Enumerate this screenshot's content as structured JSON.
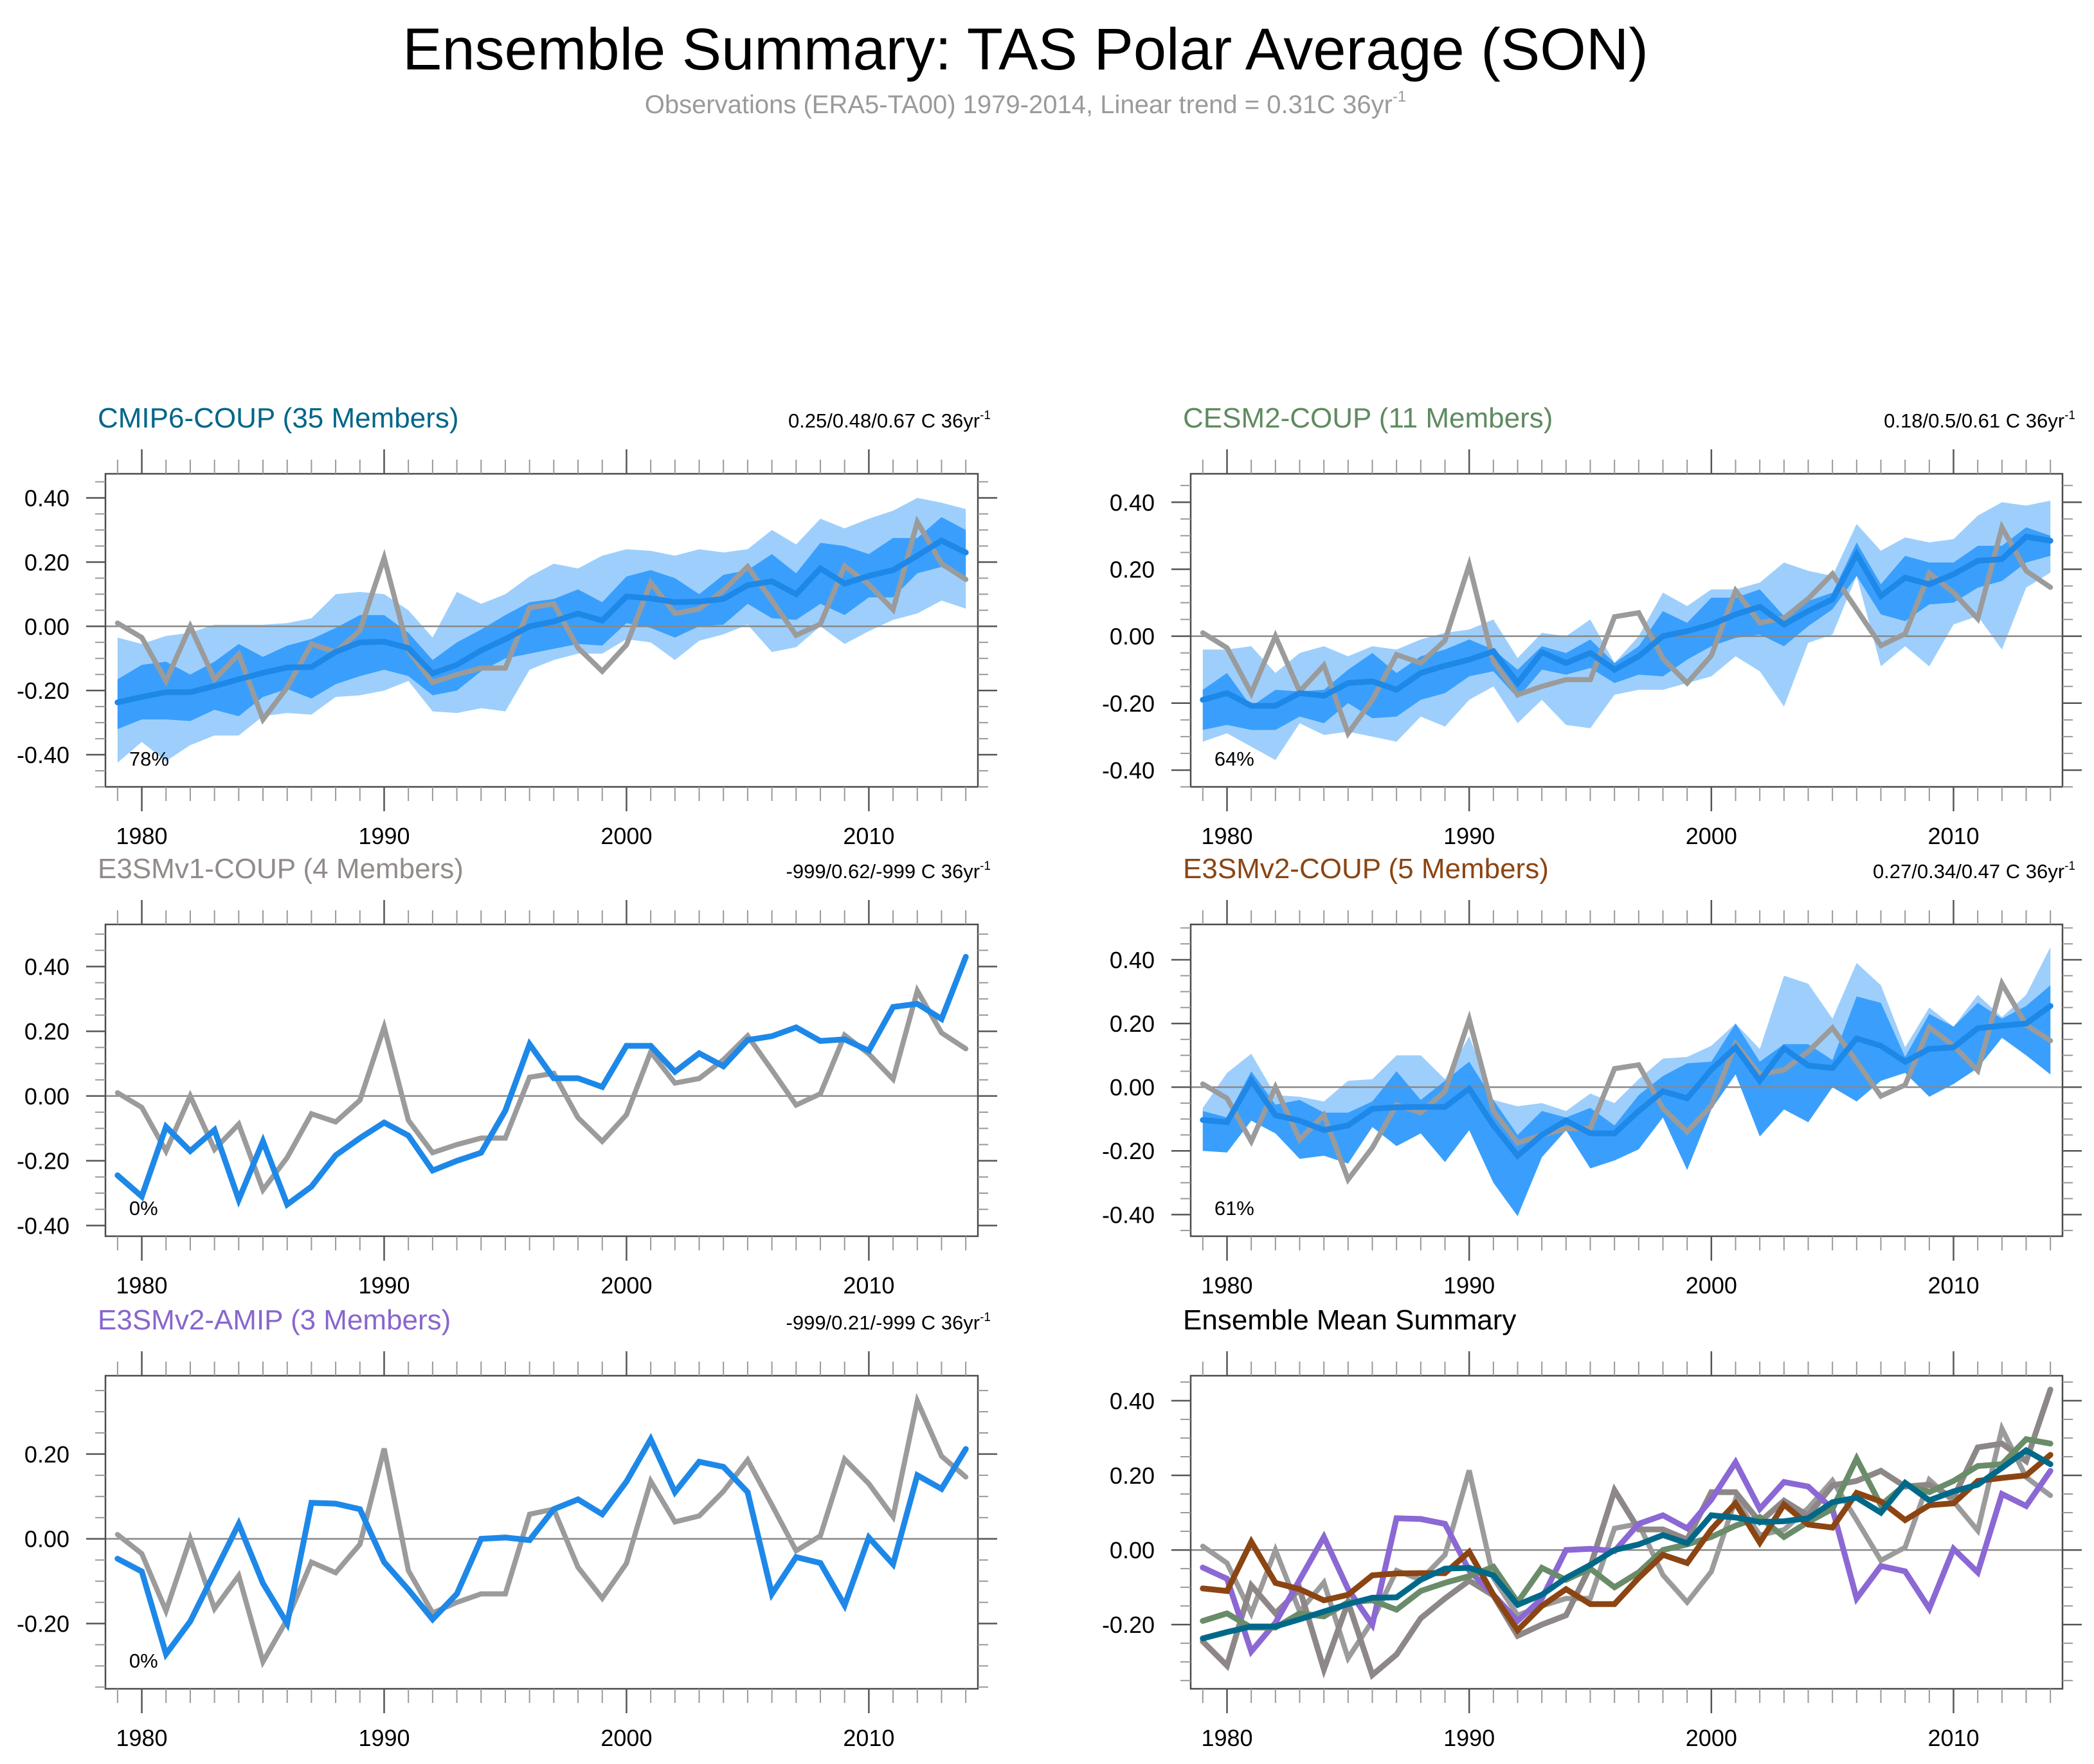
{
  "figure": {
    "title": "Ensemble Summary: TAS Polar Average (SON)",
    "subtitle": "Observations (ERA5-TA00) 1979-2014, Linear trend = 0.31C 36yr",
    "subtitle_sup": "-1"
  },
  "colors": {
    "obs": "#9b9b9b",
    "ens_mean": "#1e88e8",
    "band_inner": "#3a9ffc",
    "band_outer": "#9ecffc",
    "zero_line": "#888888"
  },
  "chart_data": [
    {
      "id": "cmip6",
      "type": "area",
      "title": "CMIP6-COUP (35 Members)",
      "title_color": "#006688",
      "trend_label": "0.25/0.48/0.67 C 36yr",
      "trend_sup": "-1",
      "percent_label": "78%",
      "xlabel": "",
      "ylabel": "",
      "x_start": 1979,
      "x_end": 2014,
      "xticks": [
        1980,
        1990,
        2000,
        2010
      ],
      "yticks": [
        "0.40",
        "0.20",
        "0.00",
        "-0.20",
        "-0.40"
      ],
      "ytick_values": [
        0.4,
        0.2,
        0.0,
        -0.2,
        -0.4
      ],
      "ylim": [
        -0.5,
        0.475
      ],
      "grid": false,
      "ens_mean": [
        -0.237,
        -0.22,
        -0.205,
        -0.205,
        -0.186,
        -0.165,
        -0.145,
        -0.128,
        -0.127,
        -0.08,
        -0.05,
        -0.048,
        -0.068,
        -0.147,
        -0.12,
        -0.075,
        -0.04,
        0.0,
        0.015,
        0.04,
        0.018,
        0.093,
        0.087,
        0.075,
        0.077,
        0.085,
        0.128,
        0.14,
        0.1,
        0.18,
        0.133,
        0.157,
        0.175,
        0.22,
        0.267,
        0.23
      ],
      "inner_upper": [
        -0.165,
        -0.12,
        -0.11,
        -0.15,
        -0.11,
        -0.055,
        -0.095,
        -0.06,
        -0.04,
        -0.005,
        0.035,
        0.035,
        -0.02,
        -0.105,
        -0.05,
        -0.01,
        0.035,
        0.075,
        0.085,
        0.115,
        0.075,
        0.155,
        0.175,
        0.15,
        0.1,
        0.16,
        0.175,
        0.225,
        0.165,
        0.26,
        0.25,
        0.225,
        0.275,
        0.275,
        0.34,
        0.3
      ],
      "inner_lower": [
        -0.32,
        -0.29,
        -0.29,
        -0.295,
        -0.26,
        -0.28,
        -0.22,
        -0.195,
        -0.225,
        -0.18,
        -0.155,
        -0.135,
        -0.155,
        -0.215,
        -0.2,
        -0.14,
        -0.1,
        -0.085,
        -0.07,
        -0.055,
        -0.06,
        0.01,
        -0.005,
        -0.035,
        0.0,
        0.005,
        0.07,
        0.025,
        0.02,
        0.07,
        0.035,
        0.09,
        0.09,
        0.165,
        0.185,
        0.14
      ],
      "outer_upper": [
        -0.035,
        -0.055,
        -0.03,
        -0.02,
        0.005,
        0.005,
        0.005,
        0.01,
        0.025,
        0.1,
        0.107,
        0.1,
        0.05,
        -0.035,
        0.107,
        0.07,
        0.1,
        0.155,
        0.195,
        0.18,
        0.22,
        0.24,
        0.235,
        0.22,
        0.24,
        0.23,
        0.24,
        0.3,
        0.255,
        0.335,
        0.305,
        0.335,
        0.36,
        0.4,
        0.385,
        0.365
      ],
      "outer_lower": [
        -0.425,
        -0.36,
        -0.42,
        -0.37,
        -0.34,
        -0.34,
        -0.28,
        -0.27,
        -0.275,
        -0.22,
        -0.215,
        -0.2,
        -0.17,
        -0.265,
        -0.27,
        -0.255,
        -0.265,
        -0.135,
        -0.105,
        -0.085,
        -0.085,
        -0.04,
        -0.05,
        -0.105,
        -0.045,
        -0.025,
        0.005,
        -0.08,
        -0.065,
        0.0,
        -0.055,
        -0.015,
        0.02,
        0.04,
        0.08,
        0.055
      ]
    },
    {
      "id": "cesm2",
      "type": "area",
      "title": "CESM2-COUP (11 Members)",
      "title_color": "#5f8a60",
      "trend_label": "0.18/0.5/0.61 C 36yr",
      "trend_sup": "-1",
      "percent_label": "64%",
      "xlabel": "",
      "ylabel": "",
      "x_start": 1979,
      "x_end": 2014,
      "xticks": [
        1980,
        1990,
        2000,
        2010
      ],
      "yticks": [
        "0.40",
        "0.20",
        "0.00",
        "-0.20",
        "-0.40"
      ],
      "ytick_values": [
        0.4,
        0.2,
        0.0,
        -0.2,
        -0.4
      ],
      "ylim": [
        -0.45,
        0.485
      ],
      "grid": false,
      "ens_mean": [
        -0.19,
        -0.17,
        -0.208,
        -0.208,
        -0.17,
        -0.178,
        -0.14,
        -0.135,
        -0.16,
        -0.11,
        -0.088,
        -0.07,
        -0.045,
        -0.14,
        -0.048,
        -0.08,
        -0.05,
        -0.1,
        -0.06,
        0.0,
        0.015,
        0.035,
        0.065,
        0.088,
        0.035,
        0.075,
        0.11,
        0.245,
        0.12,
        0.175,
        0.155,
        0.185,
        0.225,
        0.23,
        0.297,
        0.285
      ],
      "inner_upper": [
        -0.16,
        -0.11,
        -0.21,
        -0.16,
        -0.165,
        -0.16,
        -0.1,
        -0.05,
        -0.11,
        -0.06,
        -0.04,
        -0.01,
        -0.04,
        -0.1,
        -0.03,
        -0.05,
        -0.01,
        -0.08,
        -0.03,
        0.075,
        0.04,
        0.115,
        0.115,
        0.14,
        0.06,
        0.105,
        0.13,
        0.28,
        0.155,
        0.24,
        0.22,
        0.22,
        0.27,
        0.27,
        0.325,
        0.3
      ],
      "inner_lower": [
        -0.28,
        -0.265,
        -0.28,
        -0.28,
        -0.24,
        -0.26,
        -0.2,
        -0.245,
        -0.24,
        -0.19,
        -0.17,
        -0.12,
        -0.105,
        -0.185,
        -0.1,
        -0.115,
        -0.095,
        -0.14,
        -0.115,
        -0.12,
        -0.07,
        -0.03,
        -0.005,
        0.005,
        -0.03,
        0.03,
        0.08,
        0.18,
        0.065,
        0.045,
        0.095,
        0.1,
        0.145,
        0.165,
        0.22,
        0.24
      ],
      "outer_upper": [
        -0.04,
        -0.04,
        -0.03,
        -0.11,
        -0.05,
        -0.03,
        -0.06,
        -0.03,
        -0.04,
        -0.01,
        0.01,
        0.02,
        0.05,
        -0.065,
        0.01,
        0.0,
        0.05,
        -0.08,
        0.0,
        0.13,
        0.09,
        0.14,
        0.14,
        0.16,
        0.22,
        0.195,
        0.18,
        0.335,
        0.255,
        0.295,
        0.28,
        0.29,
        0.36,
        0.4,
        0.39,
        0.405
      ],
      "outer_lower": [
        -0.315,
        -0.29,
        -0.33,
        -0.37,
        -0.26,
        -0.295,
        -0.285,
        -0.3,
        -0.315,
        -0.24,
        -0.27,
        -0.19,
        -0.15,
        -0.26,
        -0.19,
        -0.265,
        -0.275,
        -0.175,
        -0.16,
        -0.16,
        -0.14,
        -0.12,
        -0.06,
        -0.105,
        -0.21,
        -0.02,
        0.005,
        0.18,
        -0.09,
        -0.03,
        -0.09,
        0.035,
        0.06,
        -0.04,
        0.145,
        0.19
      ]
    },
    {
      "id": "e3smv1",
      "type": "line",
      "title": "E3SMv1-COUP (4 Members)",
      "title_color": "#938a8a",
      "trend_label": "-999/0.62/-999 C 36yr",
      "trend_sup": "-1",
      "percent_label": "0%",
      "xlabel": "",
      "ylabel": "",
      "x_start": 1979,
      "x_end": 2014,
      "xticks": [
        1980,
        1990,
        2000,
        2010
      ],
      "yticks": [
        "0.40",
        "0.20",
        "0.00",
        "-0.20",
        "-0.40"
      ],
      "ytick_values": [
        0.4,
        0.2,
        0.0,
        -0.2,
        -0.4
      ],
      "ylim": [
        -0.433,
        0.53
      ],
      "grid": false,
      "ens_mean": [
        -0.245,
        -0.31,
        -0.095,
        -0.17,
        -0.105,
        -0.32,
        -0.14,
        -0.335,
        -0.28,
        -0.183,
        -0.13,
        -0.082,
        -0.122,
        -0.23,
        -0.2,
        -0.175,
        -0.045,
        0.16,
        0.055,
        0.055,
        0.028,
        0.155,
        0.155,
        0.075,
        0.132,
        0.092,
        0.173,
        0.185,
        0.212,
        0.17,
        0.175,
        0.14,
        0.275,
        0.285,
        0.238,
        0.43
      ]
    },
    {
      "id": "e3smv2coup",
      "type": "area",
      "title": "E3SMv2-COUP (5 Members)",
      "title_color": "#8b4513",
      "trend_label": "0.27/0.34/0.47 C 36yr",
      "trend_sup": "-1",
      "percent_label": "61%",
      "xlabel": "",
      "ylabel": "",
      "x_start": 1979,
      "x_end": 2014,
      "xticks": [
        1980,
        1990,
        2000,
        2010
      ],
      "yticks": [
        "0.40",
        "0.20",
        "0.00",
        "-0.20",
        "-0.40"
      ],
      "ytick_values": [
        0.4,
        0.2,
        0.0,
        -0.2,
        -0.4
      ],
      "ylim": [
        -0.468,
        0.511
      ],
      "grid": false,
      "ens_mean": [
        -0.103,
        -0.11,
        0.022,
        -0.088,
        -0.105,
        -0.135,
        -0.12,
        -0.068,
        -0.063,
        -0.062,
        -0.062,
        -0.005,
        -0.12,
        -0.215,
        -0.15,
        -0.105,
        -0.145,
        -0.145,
        -0.075,
        -0.013,
        -0.035,
        0.055,
        0.125,
        0.02,
        0.122,
        0.068,
        0.06,
        0.153,
        0.13,
        0.08,
        0.12,
        0.125,
        0.185,
        0.193,
        0.2,
        0.255
      ],
      "inner_upper": [
        -0.075,
        -0.095,
        0.05,
        -0.055,
        -0.04,
        -0.08,
        -0.08,
        -0.045,
        0.05,
        -0.04,
        0.02,
        0.08,
        -0.04,
        -0.15,
        -0.075,
        -0.095,
        -0.065,
        -0.12,
        -0.025,
        0.035,
        0.075,
        0.08,
        0.2,
        0.08,
        0.135,
        0.135,
        0.085,
        0.285,
        0.265,
        0.095,
        0.23,
        0.19,
        0.265,
        0.215,
        0.255,
        0.32
      ],
      "inner_lower": [
        -0.2,
        -0.205,
        -0.105,
        -0.145,
        -0.225,
        -0.215,
        -0.24,
        -0.125,
        -0.185,
        -0.145,
        -0.235,
        -0.135,
        -0.3,
        -0.405,
        -0.22,
        -0.135,
        -0.255,
        -0.23,
        -0.195,
        -0.095,
        -0.26,
        -0.07,
        0.04,
        -0.155,
        -0.07,
        -0.11,
        0.0,
        -0.045,
        0.02,
        0.045,
        -0.03,
        0.01,
        0.06,
        0.155,
        0.1,
        0.04
      ],
      "outer_upper": [
        -0.065,
        0.045,
        0.105,
        -0.025,
        -0.03,
        -0.045,
        0.02,
        0.025,
        0.1,
        0.1,
        0.025,
        0.16,
        -0.04,
        -0.06,
        -0.05,
        -0.075,
        -0.02,
        -0.05,
        0.025,
        0.09,
        0.095,
        0.13,
        0.2,
        0.12,
        0.35,
        0.325,
        0.215,
        0.39,
        0.32,
        0.125,
        0.25,
        0.19,
        0.29,
        0.22,
        0.29,
        0.44
      ],
      "outer_lower": [
        -0.2,
        -0.205,
        -0.105,
        -0.145,
        -0.225,
        -0.215,
        -0.24,
        -0.125,
        -0.185,
        -0.145,
        -0.235,
        -0.135,
        -0.3,
        -0.405,
        -0.22,
        -0.135,
        -0.255,
        -0.23,
        -0.195,
        -0.095,
        -0.26,
        -0.07,
        0.04,
        -0.155,
        -0.07,
        -0.11,
        0.0,
        -0.045,
        0.02,
        0.045,
        -0.03,
        0.01,
        0.06,
        0.155,
        0.1,
        0.04
      ]
    },
    {
      "id": "e3smv2amip",
      "type": "line",
      "title": "E3SMv2-AMIP (3 Members)",
      "title_color": "#8866cc",
      "trend_label": "-999/0.21/-999 C 36yr",
      "trend_sup": "-1",
      "percent_label": "0%",
      "xlabel": "",
      "ylabel": "",
      "x_start": 1979,
      "x_end": 2014,
      "xticks": [
        1980,
        1990,
        2000,
        2010
      ],
      "yticks": [
        "0.20",
        "0.00",
        "-0.20"
      ],
      "ytick_values": [
        0.2,
        0.0,
        -0.2
      ],
      "ylim": [
        -0.354,
        0.385
      ],
      "grid": false,
      "ens_mean": [
        -0.047,
        -0.077,
        -0.272,
        -0.195,
        -0.08,
        0.035,
        -0.105,
        -0.2,
        0.085,
        0.083,
        0.07,
        -0.055,
        -0.12,
        -0.19,
        -0.13,
        0.0,
        0.003,
        -0.003,
        0.07,
        0.093,
        0.058,
        0.135,
        0.235,
        0.11,
        0.182,
        0.17,
        0.11,
        -0.13,
        -0.043,
        -0.057,
        -0.157,
        0.003,
        -0.06,
        0.15,
        0.118,
        0.212
      ]
    },
    {
      "id": "summary",
      "type": "line",
      "title": "Ensemble Mean Summary",
      "title_color": "#000000",
      "trend_label": "",
      "trend_sup": "",
      "percent_label": "",
      "xlabel": "",
      "ylabel": "",
      "x_start": 1979,
      "x_end": 2014,
      "xticks": [
        1980,
        1990,
        2000,
        2010
      ],
      "yticks": [
        "0.40",
        "0.20",
        "0.00",
        "-0.20"
      ],
      "ytick_values": [
        0.4,
        0.2,
        0.0,
        -0.2
      ],
      "ylim": [
        -0.372,
        0.467
      ],
      "grid": false,
      "series_refs": [
        {
          "name": "E3SMv1-COUP",
          "ref": "e3smv1",
          "color": "#8e8787"
        },
        {
          "name": "E3SMv2-AMIP",
          "ref": "e3smv2amip",
          "color": "#8b68d4"
        },
        {
          "name": "CESM2-COUP",
          "ref": "cesm2",
          "color": "#6a8c69"
        },
        {
          "name": "E3SMv2-COUP",
          "ref": "e3smv2coup",
          "color": "#8b4513"
        },
        {
          "name": "CMIP6-COUP",
          "ref": "cmip6",
          "color": "#00698a"
        }
      ]
    }
  ],
  "observations": {
    "name": "ERA5-TA00",
    "values": [
      0.01,
      -0.035,
      -0.17,
      0.0,
      -0.165,
      -0.087,
      -0.29,
      -0.19,
      -0.055,
      -0.08,
      -0.013,
      0.213,
      -0.075,
      -0.175,
      -0.15,
      -0.13,
      -0.13,
      0.058,
      0.07,
      -0.067,
      -0.14,
      -0.058,
      0.136,
      0.04,
      0.054,
      0.112,
      0.186,
      0.08,
      -0.028,
      0.007,
      0.188,
      0.13,
      0.052,
      0.325,
      0.195,
      0.146
    ]
  }
}
